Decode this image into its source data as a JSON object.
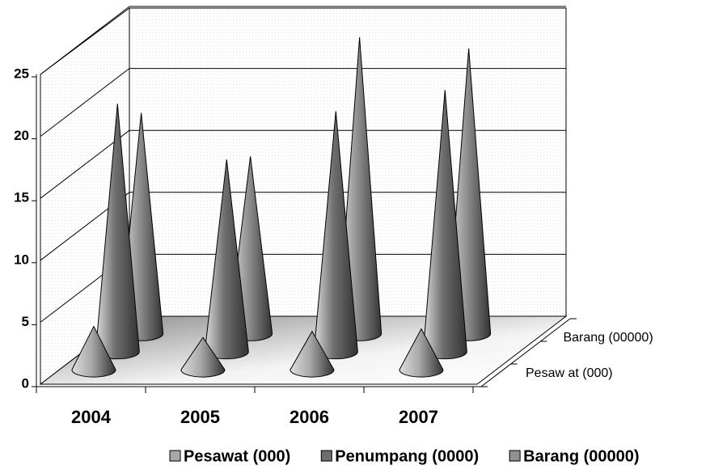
{
  "chart_data": {
    "type": "cone3d",
    "categories": [
      "2004",
      "2005",
      "2006",
      "2007"
    ],
    "series": [
      {
        "name": "Pesawat (000)",
        "color": "#a8a8a8",
        "values": [
          3.5,
          2.6,
          3.1,
          3.3
        ]
      },
      {
        "name": "Penumpang (0000)",
        "color": "#6e6e6e",
        "values": [
          20,
          15.5,
          19.4,
          21.1
        ]
      },
      {
        "name": "Barang (00000)",
        "color": "#909090",
        "values": [
          17.8,
          14.3,
          23.9,
          23
        ]
      }
    ],
    "depth_labels": [
      "Pesaw at (000)",
      "Barang (00000)"
    ],
    "ylim": [
      0,
      25
    ],
    "yticks": [
      0,
      5,
      10,
      15,
      20,
      25
    ],
    "grid": true
  }
}
